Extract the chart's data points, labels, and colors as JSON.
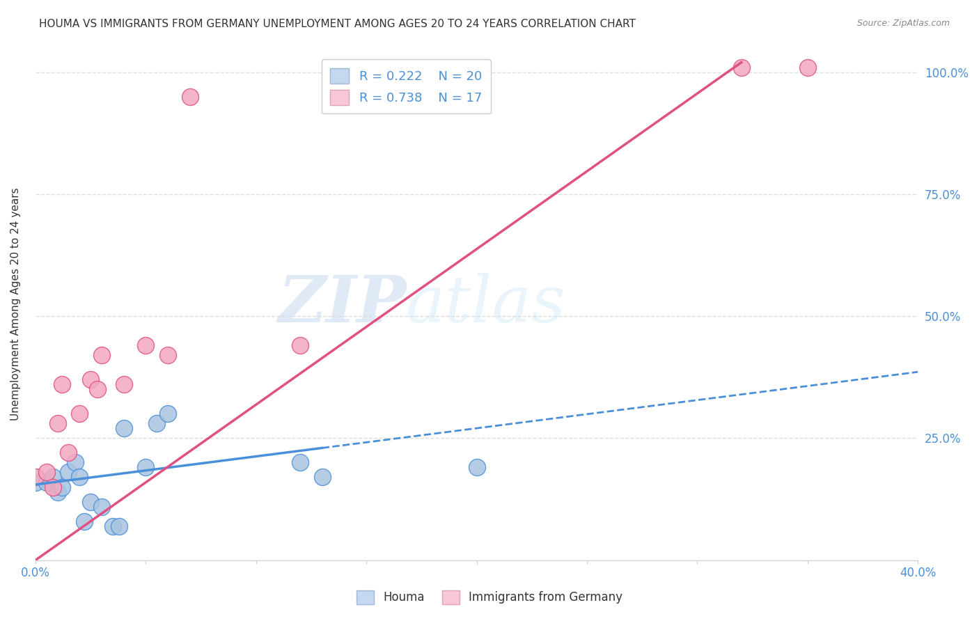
{
  "title": "HOUMA VS IMMIGRANTS FROM GERMANY UNEMPLOYMENT AMONG AGES 20 TO 24 YEARS CORRELATION CHART",
  "source": "Source: ZipAtlas.com",
  "ylabel": "Unemployment Among Ages 20 to 24 years",
  "xlim": [
    0.0,
    0.4
  ],
  "ylim": [
    0.0,
    1.05
  ],
  "houma_R": 0.222,
  "houma_N": 20,
  "germany_R": 0.738,
  "germany_N": 17,
  "houma_color": "#a8c4e0",
  "germany_color": "#f4a8c0",
  "houma_line_color": "#4a90d9",
  "germany_line_color": "#e05080",
  "houma_scatter_x": [
    0.0,
    0.005,
    0.008,
    0.01,
    0.012,
    0.015,
    0.018,
    0.02,
    0.022,
    0.025,
    0.03,
    0.035,
    0.038,
    0.04,
    0.05,
    0.055,
    0.06,
    0.12,
    0.13,
    0.2
  ],
  "houma_scatter_y": [
    0.16,
    0.16,
    0.17,
    0.14,
    0.15,
    0.18,
    0.2,
    0.17,
    0.08,
    0.12,
    0.11,
    0.07,
    0.07,
    0.27,
    0.19,
    0.28,
    0.3,
    0.2,
    0.17,
    0.19
  ],
  "germany_scatter_x": [
    0.0,
    0.005,
    0.008,
    0.01,
    0.012,
    0.015,
    0.02,
    0.025,
    0.028,
    0.03,
    0.04,
    0.05,
    0.06,
    0.07,
    0.12,
    0.32,
    0.35
  ],
  "germany_scatter_y": [
    0.17,
    0.18,
    0.15,
    0.28,
    0.36,
    0.22,
    0.3,
    0.37,
    0.35,
    0.42,
    0.36,
    0.44,
    0.42,
    0.95,
    0.44,
    1.01,
    1.01
  ],
  "watermark_zip": "ZIP",
  "watermark_atlas": "atlas",
  "background_color": "#ffffff",
  "grid_color": "#dddddd",
  "legend_box_color_houma": "#c5d8f0",
  "legend_box_color_germany": "#f9c8d8",
  "title_fontsize": 11,
  "axis_label_fontsize": 11,
  "ytick_positions": [
    0.0,
    0.25,
    0.5,
    0.75,
    1.0
  ],
  "ytick_labels": [
    "",
    "25.0%",
    "50.0%",
    "75.0%",
    "100.0%"
  ]
}
